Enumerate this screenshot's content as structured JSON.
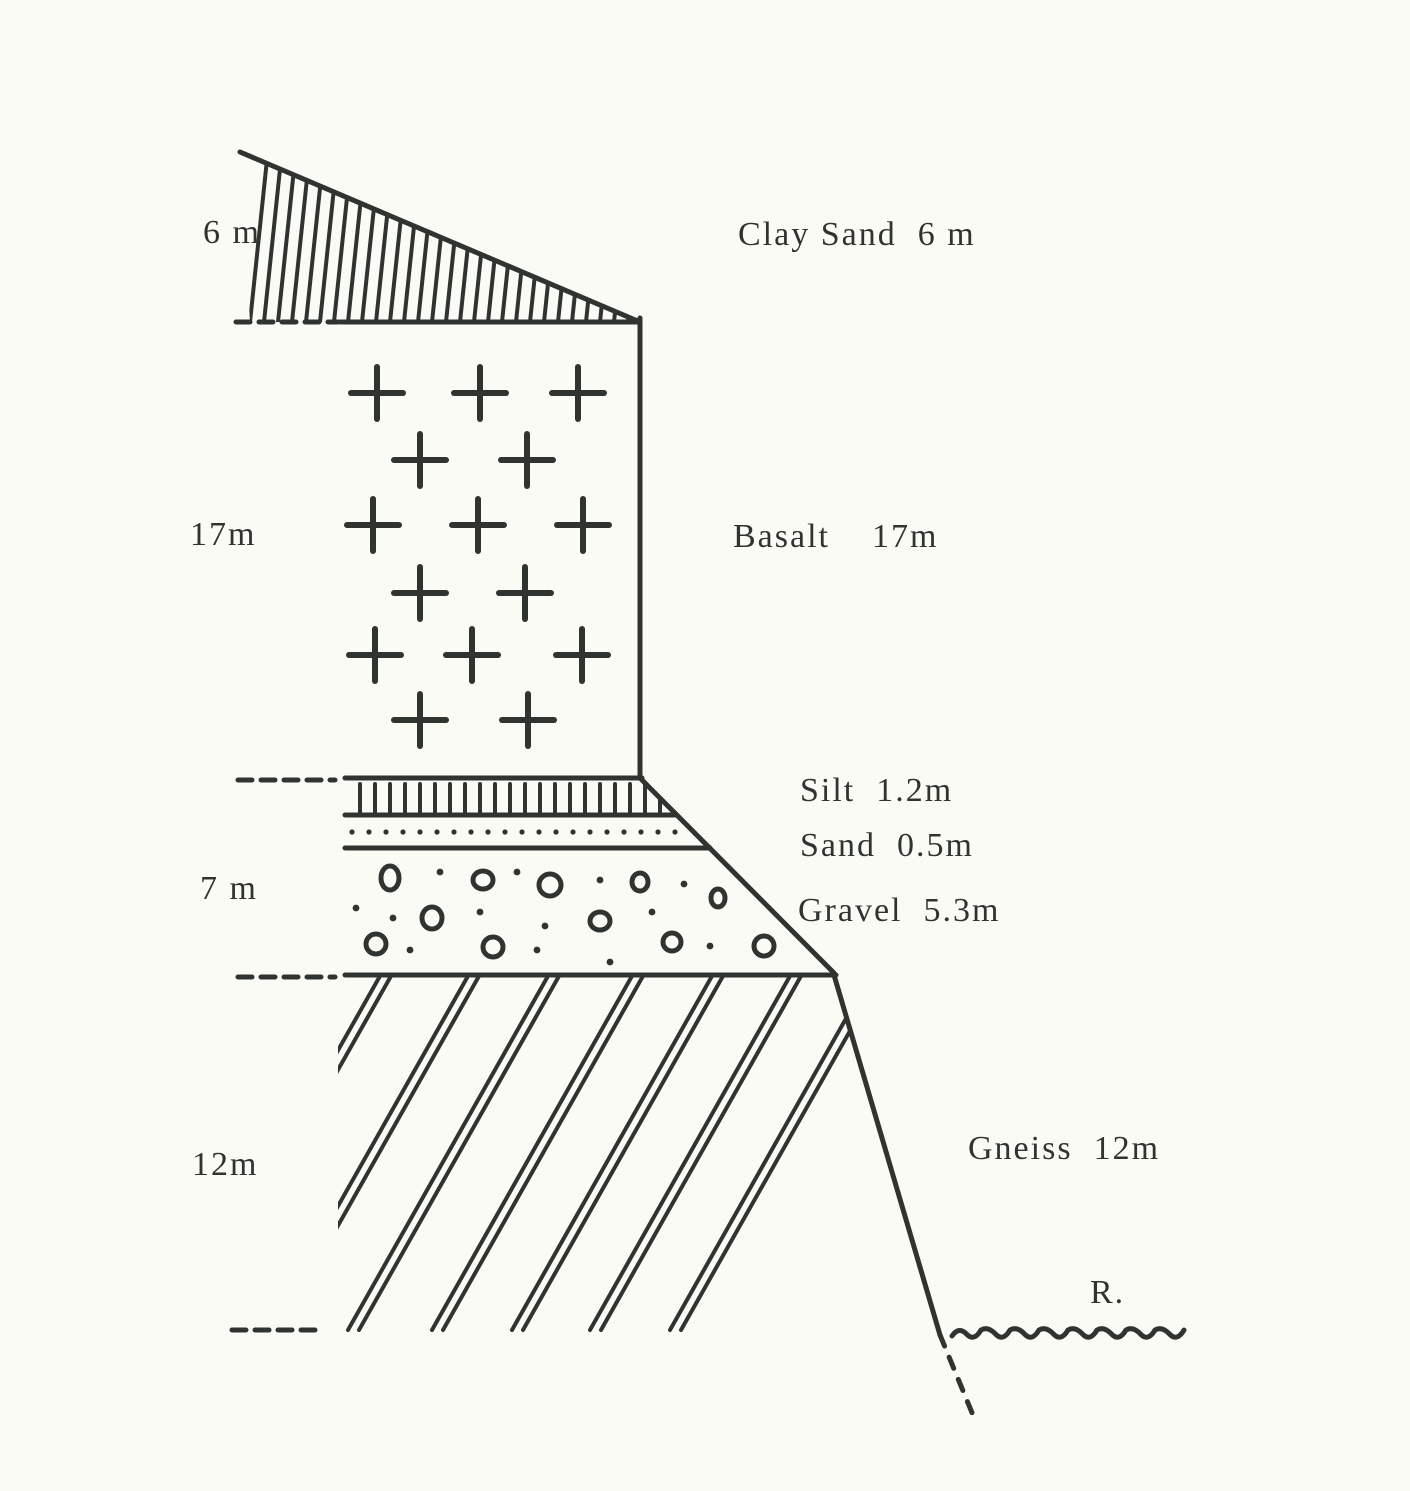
{
  "depth_labels": [
    "6 m",
    "17m",
    "7 m",
    "12m"
  ],
  "layers": [
    {
      "name": "Clay Sand",
      "thickness": "6 m"
    },
    {
      "name": "Basalt",
      "thickness": "17m"
    },
    {
      "name": "Silt",
      "thickness": "1.2m"
    },
    {
      "name": "Sand",
      "thickness": "0.5m"
    },
    {
      "name": "Gravel",
      "thickness": "5.3m"
    },
    {
      "name": "Gneiss",
      "thickness": "12m"
    }
  ],
  "river_label": "R.",
  "colors": {
    "ink": "#2f3431",
    "paper": "#fbfbf6"
  }
}
